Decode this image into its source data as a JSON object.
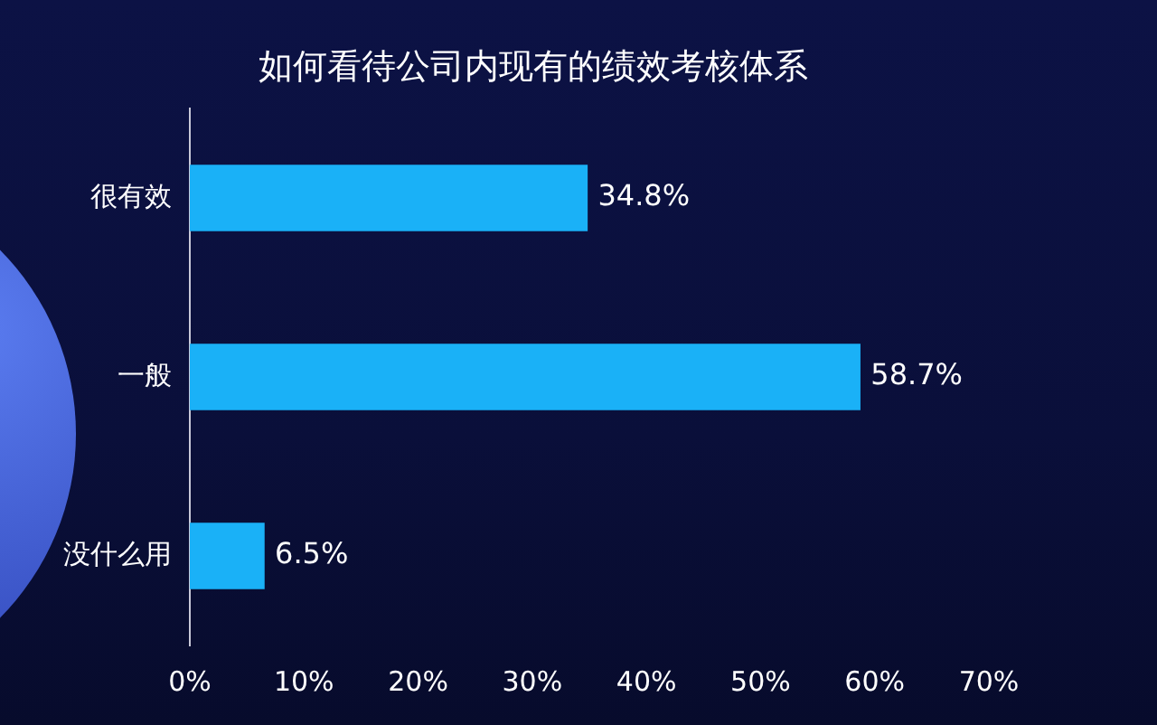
{
  "chart_data": {
    "type": "bar",
    "orientation": "horizontal",
    "title": "如何看待公司内现有的绩效考核体系",
    "categories": [
      "很有效",
      "一般",
      "没什么用"
    ],
    "values": [
      34.8,
      58.7,
      6.5
    ],
    "value_labels": [
      "34.8%",
      "58.7%",
      "6.5%"
    ],
    "color": "#1ab1f7",
    "xlim": [
      0,
      70
    ],
    "xticks": [
      {
        "value": 0,
        "label": "0%"
      },
      {
        "value": 10,
        "label": "10%"
      },
      {
        "value": 20,
        "label": "20%"
      },
      {
        "value": 30,
        "label": "30%"
      },
      {
        "value": 40,
        "label": "40%"
      },
      {
        "value": 50,
        "label": "50%"
      },
      {
        "value": 60,
        "label": "60%"
      },
      {
        "value": 70,
        "label": "70%"
      }
    ],
    "grid": false,
    "legend": false
  }
}
